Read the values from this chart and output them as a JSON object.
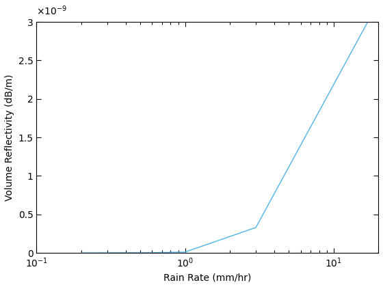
{
  "x": [
    0.2,
    0.6,
    1.0,
    3.0,
    17.0
  ],
  "y": [
    0.0,
    2e-12,
    1e-11,
    3.3e-10,
    3e-09
  ],
  "line_color": "#4db3e6",
  "xlabel": "Rain Rate (mm/hr)",
  "ylabel": "Volume Reflectivity (dB/m)",
  "xlim": [
    0.1,
    20
  ],
  "ylim": [
    0,
    3e-09
  ],
  "yticks": [
    0,
    5e-10,
    1e-09,
    1.5e-09,
    2e-09,
    2.5e-09,
    3e-09
  ],
  "ytick_labels": [
    "0",
    "0.5",
    "1",
    "1.5",
    "2",
    "2.5",
    "3"
  ],
  "xticks": [
    0.1,
    1.0,
    10.0
  ],
  "xtick_labels": [
    "10^{-1}",
    "10^{0}",
    "10^{1}"
  ]
}
